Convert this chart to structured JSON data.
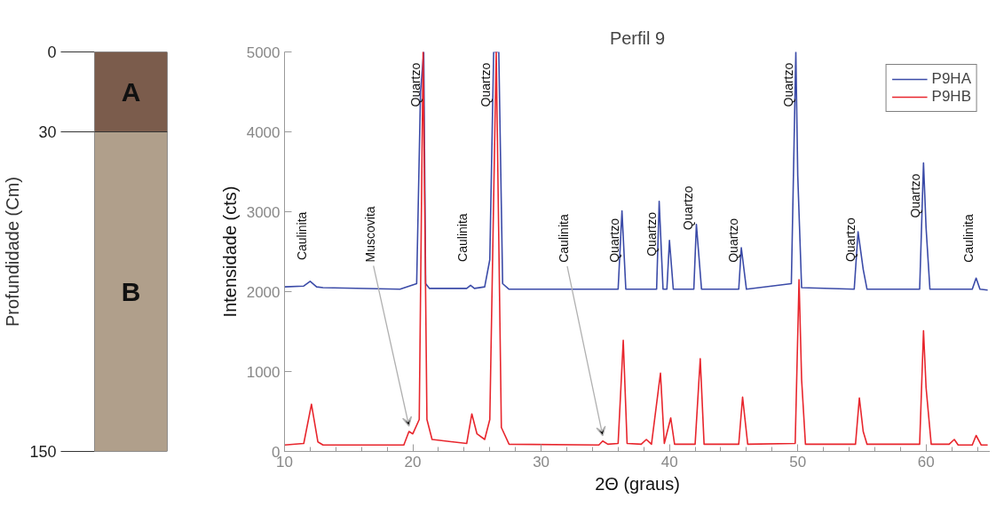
{
  "chart_data": [
    {
      "type": "bar",
      "stacked": true,
      "categories": [
        null
      ],
      "ylabel": "Profundidade (Cm)",
      "ylim": [
        150,
        0
      ],
      "yticks": [
        0,
        30,
        150
      ],
      "tick_labels": "y",
      "grid": false,
      "series": [
        {
          "name": "A",
          "color": "#7b5c4c",
          "values": [
            30
          ]
        },
        {
          "name": "B",
          "color": "#b09f8b",
          "values": [
            120
          ]
        }
      ]
    },
    {
      "type": "line",
      "title": "Perfil 9",
      "xlabel": "2Θ (graus)",
      "ylabel": "Intensidade (cts)",
      "xlim": [
        10,
        65
      ],
      "xticks": [
        10,
        20,
        30,
        40,
        50,
        60
      ],
      "ylim": [
        0,
        5000
      ],
      "yticks": [
        0,
        1000,
        2000,
        3000,
        4000,
        5000
      ],
      "grid": false,
      "legend": "top right",
      "marker": "none",
      "line_style": "solid",
      "series": [
        {
          "name": "P9HA",
          "color": "#3b4ba8",
          "x": [
            10,
            11.5,
            12.0,
            12.5,
            13,
            19,
            20.3,
            20.6,
            20.85,
            21.0,
            21.3,
            24.2,
            24.5,
            24.8,
            25.6,
            26.0,
            26.3,
            26.7,
            27.0,
            27.5,
            36.0,
            36.3,
            36.6,
            39.0,
            39.2,
            39.5,
            39.8,
            40.0,
            40.3,
            41.9,
            42.1,
            42.5,
            45.4,
            45.6,
            46.0,
            49.5,
            49.85,
            50.0,
            50.3,
            54.4,
            54.7,
            55.1,
            55.4,
            59.5,
            59.8,
            60.0,
            60.3,
            63.6,
            63.9,
            64.2,
            64.8
          ],
          "values": [
            2060,
            2070,
            2130,
            2060,
            2050,
            2030,
            2100,
            4500,
            5000,
            2100,
            2040,
            2040,
            2080,
            2040,
            2060,
            2400,
            5000,
            5000,
            2100,
            2030,
            2030,
            3010,
            2030,
            2030,
            3130,
            2030,
            2030,
            2640,
            2030,
            2030,
            2840,
            2030,
            2030,
            2550,
            2030,
            2100,
            5000,
            3450,
            2050,
            2030,
            2750,
            2280,
            2030,
            2030,
            3610,
            2800,
            2030,
            2030,
            2170,
            2030,
            2020
          ]
        },
        {
          "name": "P9HB",
          "color": "#e8262d",
          "x": [
            10,
            11.5,
            12.1,
            12.6,
            13,
            19.3,
            19.7,
            20.0,
            20.5,
            20.8,
            21.1,
            21.5,
            24.2,
            24.6,
            25.0,
            25.6,
            26.0,
            26.5,
            26.9,
            27.5,
            34.5,
            34.8,
            35.2,
            36.0,
            36.4,
            36.7,
            37.8,
            38.2,
            38.6,
            39.3,
            39.6,
            40.1,
            40.4,
            42.0,
            42.4,
            42.7,
            45.4,
            45.7,
            46.1,
            49.8,
            50.1,
            50.3,
            50.6,
            54.5,
            54.8,
            55.1,
            55.4,
            59.5,
            59.8,
            60.0,
            60.4,
            61.8,
            62.2,
            62.5,
            63.6,
            63.9,
            64.3,
            64.8
          ],
          "values": [
            80,
            100,
            590,
            120,
            80,
            80,
            250,
            220,
            400,
            5000,
            400,
            150,
            100,
            470,
            220,
            150,
            400,
            5000,
            300,
            90,
            80,
            130,
            90,
            100,
            1390,
            100,
            90,
            150,
            90,
            980,
            100,
            420,
            90,
            90,
            1160,
            90,
            90,
            680,
            90,
            100,
            2150,
            900,
            90,
            90,
            670,
            250,
            90,
            90,
            1510,
            800,
            90,
            90,
            150,
            80,
            80,
            200,
            80,
            80
          ]
        }
      ],
      "annotations": [
        {
          "text": "Caulinita",
          "x": 12.0,
          "y": 2130
        },
        {
          "text": "Muscovita",
          "x": 19.7,
          "y": 250
        },
        {
          "text": "Quartzo",
          "x": 20.85,
          "y": 5000
        },
        {
          "text": "Caulinita",
          "x": 24.5,
          "y": 2080
        },
        {
          "text": "Quartzo",
          "x": 26.3,
          "y": 5000
        },
        {
          "text": "Caulinita",
          "x": 34.8,
          "y": 130
        },
        {
          "text": "Quartzo",
          "x": 36.3,
          "y": 3010
        },
        {
          "text": "Quartzo",
          "x": 39.2,
          "y": 3130
        },
        {
          "text": "Quartzo",
          "x": 42.1,
          "y": 2840
        },
        {
          "text": "Quartzo",
          "x": 45.6,
          "y": 2550
        },
        {
          "text": "Quartzo",
          "x": 49.85,
          "y": 5000
        },
        {
          "text": "Quartzo",
          "x": 54.7,
          "y": 2750
        },
        {
          "text": "Quartzo",
          "x": 59.8,
          "y": 3610
        },
        {
          "text": "Caulinita",
          "x": 63.9,
          "y": 2170
        }
      ]
    }
  ]
}
